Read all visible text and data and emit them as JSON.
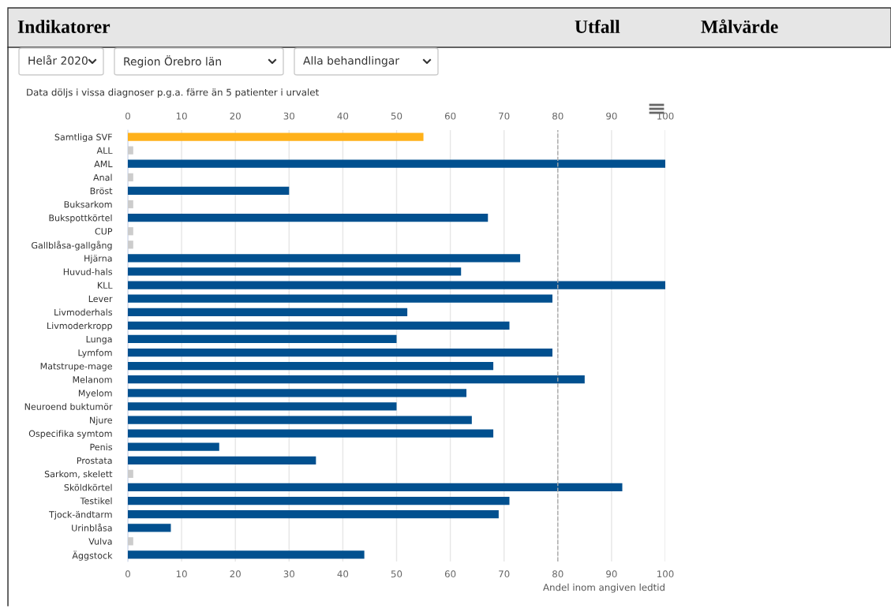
{
  "chart_data": {
    "type": "bar",
    "orientation": "horizontal",
    "categories": [
      "Samtliga SVF",
      "ALL",
      "AML",
      "Anal",
      "Bröst",
      "Buksarkom",
      "Bukspottkörtel",
      "CUP",
      "Gallblåsa-gallgång",
      "Hjärna",
      "Huvud-hals",
      "KLL",
      "Lever",
      "Livmoderhals",
      "Livmoderkropp",
      "Lunga",
      "Lymfom",
      "Matstrupe-mage",
      "Melanom",
      "Myelom",
      "Neuroend buktumör",
      "Njure",
      "Ospecifika symtom",
      "Penis",
      "Prostata",
      "Sarkom, skelett",
      "Sköldkörtel",
      "Testikel",
      "Tjock-ändtarm",
      "Urinblåsa",
      "Vulva",
      "Äggstock"
    ],
    "values": [
      55,
      1,
      100,
      1,
      30,
      1,
      67,
      1,
      1,
      73,
      62,
      100,
      79,
      52,
      71,
      50,
      79,
      68,
      85,
      63,
      50,
      64,
      68,
      17,
      35,
      1,
      92,
      71,
      69,
      8,
      1,
      44
    ],
    "colors": [
      "#ffb11a",
      "#cccccc",
      "#01508f",
      "#cccccc",
      "#01508f",
      "#cccccc",
      "#01508f",
      "#cccccc",
      "#cccccc",
      "#01508f",
      "#01508f",
      "#01508f",
      "#01508f",
      "#01508f",
      "#01508f",
      "#01508f",
      "#01508f",
      "#01508f",
      "#01508f",
      "#01508f",
      "#01508f",
      "#01508f",
      "#01508f",
      "#01508f",
      "#01508f",
      "#cccccc",
      "#01508f",
      "#01508f",
      "#01508f",
      "#01508f",
      "#cccccc",
      "#01508f"
    ],
    "xlabel": "Andel inom angiven ledtid",
    "xlim": [
      0,
      100
    ],
    "xticks": [
      0,
      10,
      20,
      30,
      40,
      50,
      60,
      70,
      80,
      90,
      100
    ],
    "x2lim": [
      0,
      100
    ],
    "x2ticks": [
      0,
      10,
      20,
      30,
      40,
      50,
      60,
      70,
      80,
      90,
      100
    ],
    "grid": "x",
    "legend": false,
    "ref_lines": [
      {
        "axis": "x",
        "value": 80,
        "color": "#aaaaaa",
        "line_style": "dashed"
      }
    ],
    "annotations": [
      "Indikatorer",
      "Utfall",
      "Målvärde",
      "Helår 2020",
      "Region Örebro län",
      "Alla behandlingar",
      "Data döljs i vissa diagnoser p.g.a. färre än 5 patienter i urvalet"
    ]
  }
}
